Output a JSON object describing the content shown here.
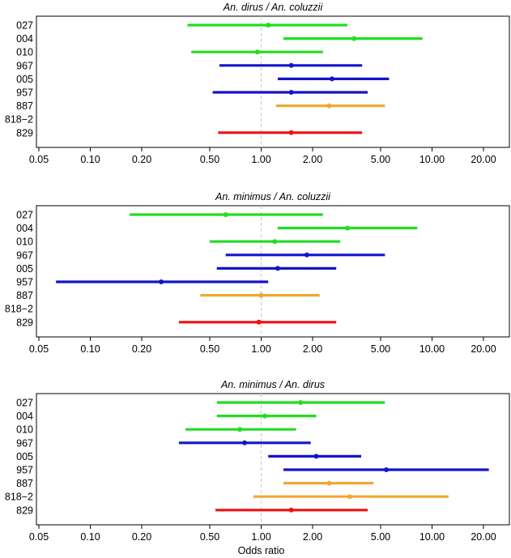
{
  "chart_data": [
    {
      "type": "forest",
      "title": "An. dirus / An. coluzzii",
      "xlabel": "",
      "x_scale": "log",
      "xlim": [
        0.05,
        30
      ],
      "xticks": [
        "0.05",
        "0.10",
        "0.20",
        "0.50",
        "1.00",
        "2.00",
        "5.00",
        "10.00",
        "20.00"
      ],
      "reference_line": 1.0,
      "rows": [
        {
          "label": "027",
          "or": 1.1,
          "lo": 0.37,
          "hi": 3.2,
          "color": "#22dd22"
        },
        {
          "label": "004",
          "or": 3.5,
          "lo": 1.35,
          "hi": 8.8,
          "color": "#22dd22"
        },
        {
          "label": "010",
          "or": 0.95,
          "lo": 0.39,
          "hi": 2.3,
          "color": "#22dd22"
        },
        {
          "label": "967",
          "or": 1.5,
          "lo": 0.57,
          "hi": 3.9,
          "color": "#1414cc"
        },
        {
          "label": "005",
          "or": 2.6,
          "lo": 1.25,
          "hi": 5.6,
          "color": "#1414cc"
        },
        {
          "label": "957",
          "or": 1.5,
          "lo": 0.52,
          "hi": 4.2,
          "color": "#1414cc"
        },
        {
          "label": "887",
          "or": 2.5,
          "lo": 1.22,
          "hi": 5.3,
          "color": "#f0a830"
        },
        {
          "label": "818−2",
          "or": null,
          "lo": null,
          "hi": null,
          "color": "#f0a830"
        },
        {
          "label": "829",
          "or": 1.5,
          "lo": 0.56,
          "hi": 3.9,
          "color": "#ee1111"
        }
      ]
    },
    {
      "type": "forest",
      "title": "An. minimus / An. coluzzii",
      "xlabel": "",
      "x_scale": "log",
      "xlim": [
        0.05,
        30
      ],
      "xticks": [
        "0.05",
        "0.10",
        "0.20",
        "0.50",
        "1.00",
        "2.00",
        "5.00",
        "10.00",
        "20.00"
      ],
      "reference_line": 1.0,
      "rows": [
        {
          "label": "027",
          "or": 0.62,
          "lo": 0.17,
          "hi": 2.3,
          "color": "#22dd22"
        },
        {
          "label": "004",
          "or": 3.2,
          "lo": 1.25,
          "hi": 8.2,
          "color": "#22dd22"
        },
        {
          "label": "010",
          "or": 1.2,
          "lo": 0.5,
          "hi": 2.9,
          "color": "#22dd22"
        },
        {
          "label": "967",
          "or": 1.85,
          "lo": 0.62,
          "hi": 5.3,
          "color": "#1414cc"
        },
        {
          "label": "005",
          "or": 1.25,
          "lo": 0.55,
          "hi": 2.75,
          "color": "#1414cc"
        },
        {
          "label": "957",
          "or": 0.26,
          "lo": 0.063,
          "hi": 1.1,
          "color": "#1414cc"
        },
        {
          "label": "887",
          "or": 1.0,
          "lo": 0.44,
          "hi": 2.2,
          "color": "#f0a830"
        },
        {
          "label": "818−2",
          "or": null,
          "lo": null,
          "hi": null,
          "color": "#f0a830"
        },
        {
          "label": "829",
          "or": 0.97,
          "lo": 0.33,
          "hi": 2.75,
          "color": "#ee1111"
        }
      ]
    },
    {
      "type": "forest",
      "title": "An. minimus / An. dirus",
      "xlabel": "Odds ratio",
      "x_scale": "log",
      "xlim": [
        0.05,
        30
      ],
      "xticks": [
        "0.05",
        "0.10",
        "0.20",
        "0.50",
        "1.00",
        "2.00",
        "5.00",
        "10.00",
        "20.00"
      ],
      "reference_line": 1.0,
      "rows": [
        {
          "label": "027",
          "or": 1.7,
          "lo": 0.55,
          "hi": 5.3,
          "color": "#22dd22"
        },
        {
          "label": "004",
          "or": 1.05,
          "lo": 0.55,
          "hi": 2.1,
          "color": "#22dd22"
        },
        {
          "label": "010",
          "or": 0.75,
          "lo": 0.36,
          "hi": 1.6,
          "color": "#22dd22"
        },
        {
          "label": "967",
          "or": 0.8,
          "lo": 0.33,
          "hi": 1.95,
          "color": "#1414cc"
        },
        {
          "label": "005",
          "or": 2.1,
          "lo": 1.1,
          "hi": 3.85,
          "color": "#1414cc"
        },
        {
          "label": "957",
          "or": 5.4,
          "lo": 1.35,
          "hi": 21.5,
          "color": "#1414cc"
        },
        {
          "label": "887",
          "or": 2.5,
          "lo": 1.35,
          "hi": 4.55,
          "color": "#f0a830"
        },
        {
          "label": "818−2",
          "or": 3.3,
          "lo": 0.9,
          "hi": 12.5,
          "color": "#f0a830"
        },
        {
          "label": "829",
          "or": 1.5,
          "lo": 0.54,
          "hi": 4.2,
          "color": "#ee1111"
        }
      ]
    }
  ]
}
